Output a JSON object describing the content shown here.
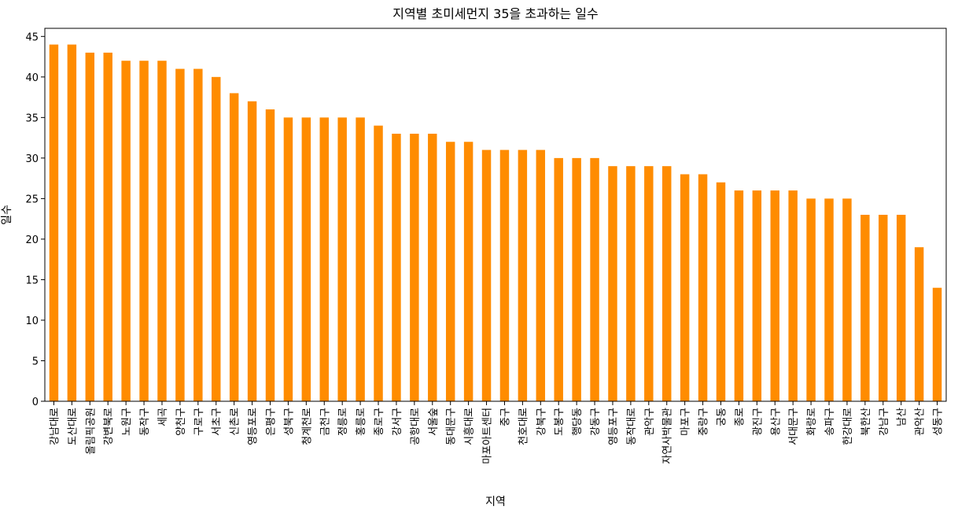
{
  "chart_data": {
    "type": "bar",
    "title": "지역별 초미세먼지 35을 초과하는 일수",
    "xlabel": "지역",
    "ylabel": "일수",
    "ylim": [
      0,
      46
    ],
    "yticks": [
      0,
      5,
      10,
      15,
      20,
      25,
      30,
      35,
      40,
      45
    ],
    "bar_color": "#ff8c00",
    "grid": false,
    "categories": [
      "강남대로",
      "도산대로",
      "올림픽공원",
      "강변북로",
      "노원구",
      "동작구",
      "세곡",
      "양천구",
      "구로구",
      "서초구",
      "신촌로",
      "영등포로",
      "은평구",
      "성북구",
      "청계천로",
      "금천구",
      "정릉로",
      "홍릉로",
      "종로구",
      "강서구",
      "공항대로",
      "서울숲",
      "동대문구",
      "시흥대로",
      "마포아트센터",
      "중구",
      "천호대로",
      "강북구",
      "도봉구",
      "행당동",
      "강동구",
      "영등포구",
      "동작대로",
      "관악구",
      "자연사박물관",
      "마포구",
      "중랑구",
      "궁동",
      "종로",
      "광진구",
      "용산구",
      "서대문구",
      "화랑로",
      "송파구",
      "한강대로",
      "북한산",
      "강남구",
      "남산",
      "관악산",
      "성동구"
    ],
    "values": [
      44,
      44,
      43,
      43,
      42,
      42,
      42,
      41,
      41,
      40,
      38,
      37,
      36,
      35,
      35,
      35,
      35,
      35,
      34,
      33,
      33,
      33,
      32,
      32,
      31,
      31,
      31,
      31,
      30,
      30,
      30,
      29,
      29,
      29,
      29,
      28,
      28,
      27,
      26,
      26,
      26,
      26,
      25,
      25,
      25,
      23,
      23,
      23,
      19,
      14
    ]
  }
}
